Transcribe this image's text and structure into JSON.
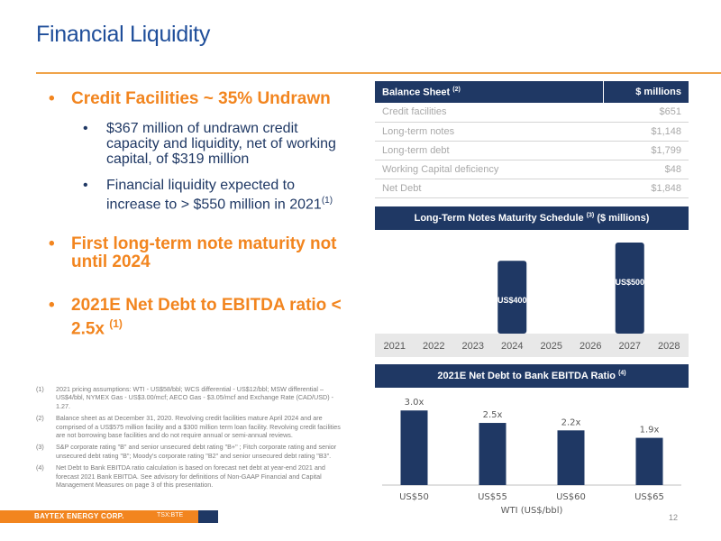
{
  "slide": {
    "title": "Financial Liquidity",
    "page_number": "12"
  },
  "left": {
    "bullet1": "Credit Facilities ~ 35% Undrawn",
    "sub_items": [
      {
        "text": "$367 million of undrawn credit capacity and liquidity, net of working capital, of $319 million",
        "sup": ""
      },
      {
        "text": "Financial liquidity expected to increase to > $550 million in 2021",
        "sup": "(1)"
      }
    ],
    "bullet2": "First long-term note maturity not until 2024",
    "bullet3": "2021E Net Debt to EBITDA ratio < 2.5x",
    "bullet3_sup": "(1)"
  },
  "footnotes": [
    {
      "num": "(1)",
      "text": "2021 pricing assumptions: WTI - US$58/bbl; WCS differential - US$12/bbl; MSW differential – US$4/bbl, NYMEX Gas - US$3.00/mcf; AECO Gas - $3.05/mcf and Exchange Rate (CAD/USD) - 1.27."
    },
    {
      "num": "(2)",
      "text": "Balance sheet as at December 31, 2020. Revolving credit facilities mature April 2024 and are comprised of a US$575 million facility and a $300 million term loan facility. Revolving credit facilities are not borrowing base facilities and do not require annual or semi-annual reviews."
    },
    {
      "num": "(3)",
      "text": "S&P corporate rating \"B\" and senior unsecured debt rating \"B+\" ; Fitch corporate rating and senior unsecured debt rating \"B\"; Moody's corporate rating \"B2\" and senior unsecured debt rating \"B3\"."
    },
    {
      "num": "(4)",
      "text": "Net Debt to Bank EBITDA ratio calculation is based on forecast net debt at year-end 2021 and forecast 2021 Bank EBITDA. See advisory for definitions of Non-GAAP Financial and Capital Management Measures on page 3 of this presentation."
    }
  ],
  "balance_sheet": {
    "header_label": "Balance Sheet",
    "header_sup": "(2)",
    "header_value": "$ millions",
    "rows": [
      {
        "label": "Credit facilities",
        "value": "$651"
      },
      {
        "label": "Long-term notes",
        "value": "$1,148"
      },
      {
        "label": "Long-term debt",
        "value": "$1,799"
      },
      {
        "label": "Working Capital deficiency",
        "value": "$48"
      },
      {
        "label": "Net Debt",
        "value": "$1,848"
      }
    ]
  },
  "maturity_banner": {
    "text": "Long-Term Notes Maturity Schedule",
    "sup": "(3)",
    "suffix": "($ millions)"
  },
  "ratio_banner": {
    "text": "2021E Net Debt to Bank EBITDA Ratio",
    "sup": "(4)"
  },
  "chart_data": [
    {
      "type": "bar",
      "categories": [
        "2021",
        "2022",
        "2023",
        "2024",
        "2025",
        "2026",
        "2027",
        "2028"
      ],
      "values": [
        0,
        0,
        0,
        400,
        0,
        0,
        500,
        0
      ],
      "data_labels": [
        "",
        "",
        "",
        "US$400",
        "",
        "",
        "US$500",
        ""
      ],
      "ylim": [
        0,
        520
      ],
      "grid": false,
      "bar_color": "#1f3864",
      "axis_band_color": "#e8e8e8"
    },
    {
      "type": "bar",
      "categories": [
        "US$50",
        "US$55",
        "US$60",
        "US$65"
      ],
      "values": [
        3.0,
        2.5,
        2.2,
        1.9
      ],
      "data_labels": [
        "3.0x",
        "2.5x",
        "2.2x",
        "1.9x"
      ],
      "xlabel": "WTI (US$/bbl)",
      "ylim": [
        0,
        3.4
      ],
      "grid": false,
      "bar_color": "#1f3864"
    }
  ],
  "footer": {
    "brand": "BAYTEX ENERGY CORP.",
    "ticker": "TSX:BTE"
  },
  "colors": {
    "accent": "#f2851f",
    "navy": "#1f3864",
    "title_blue": "#1f4e9a"
  }
}
